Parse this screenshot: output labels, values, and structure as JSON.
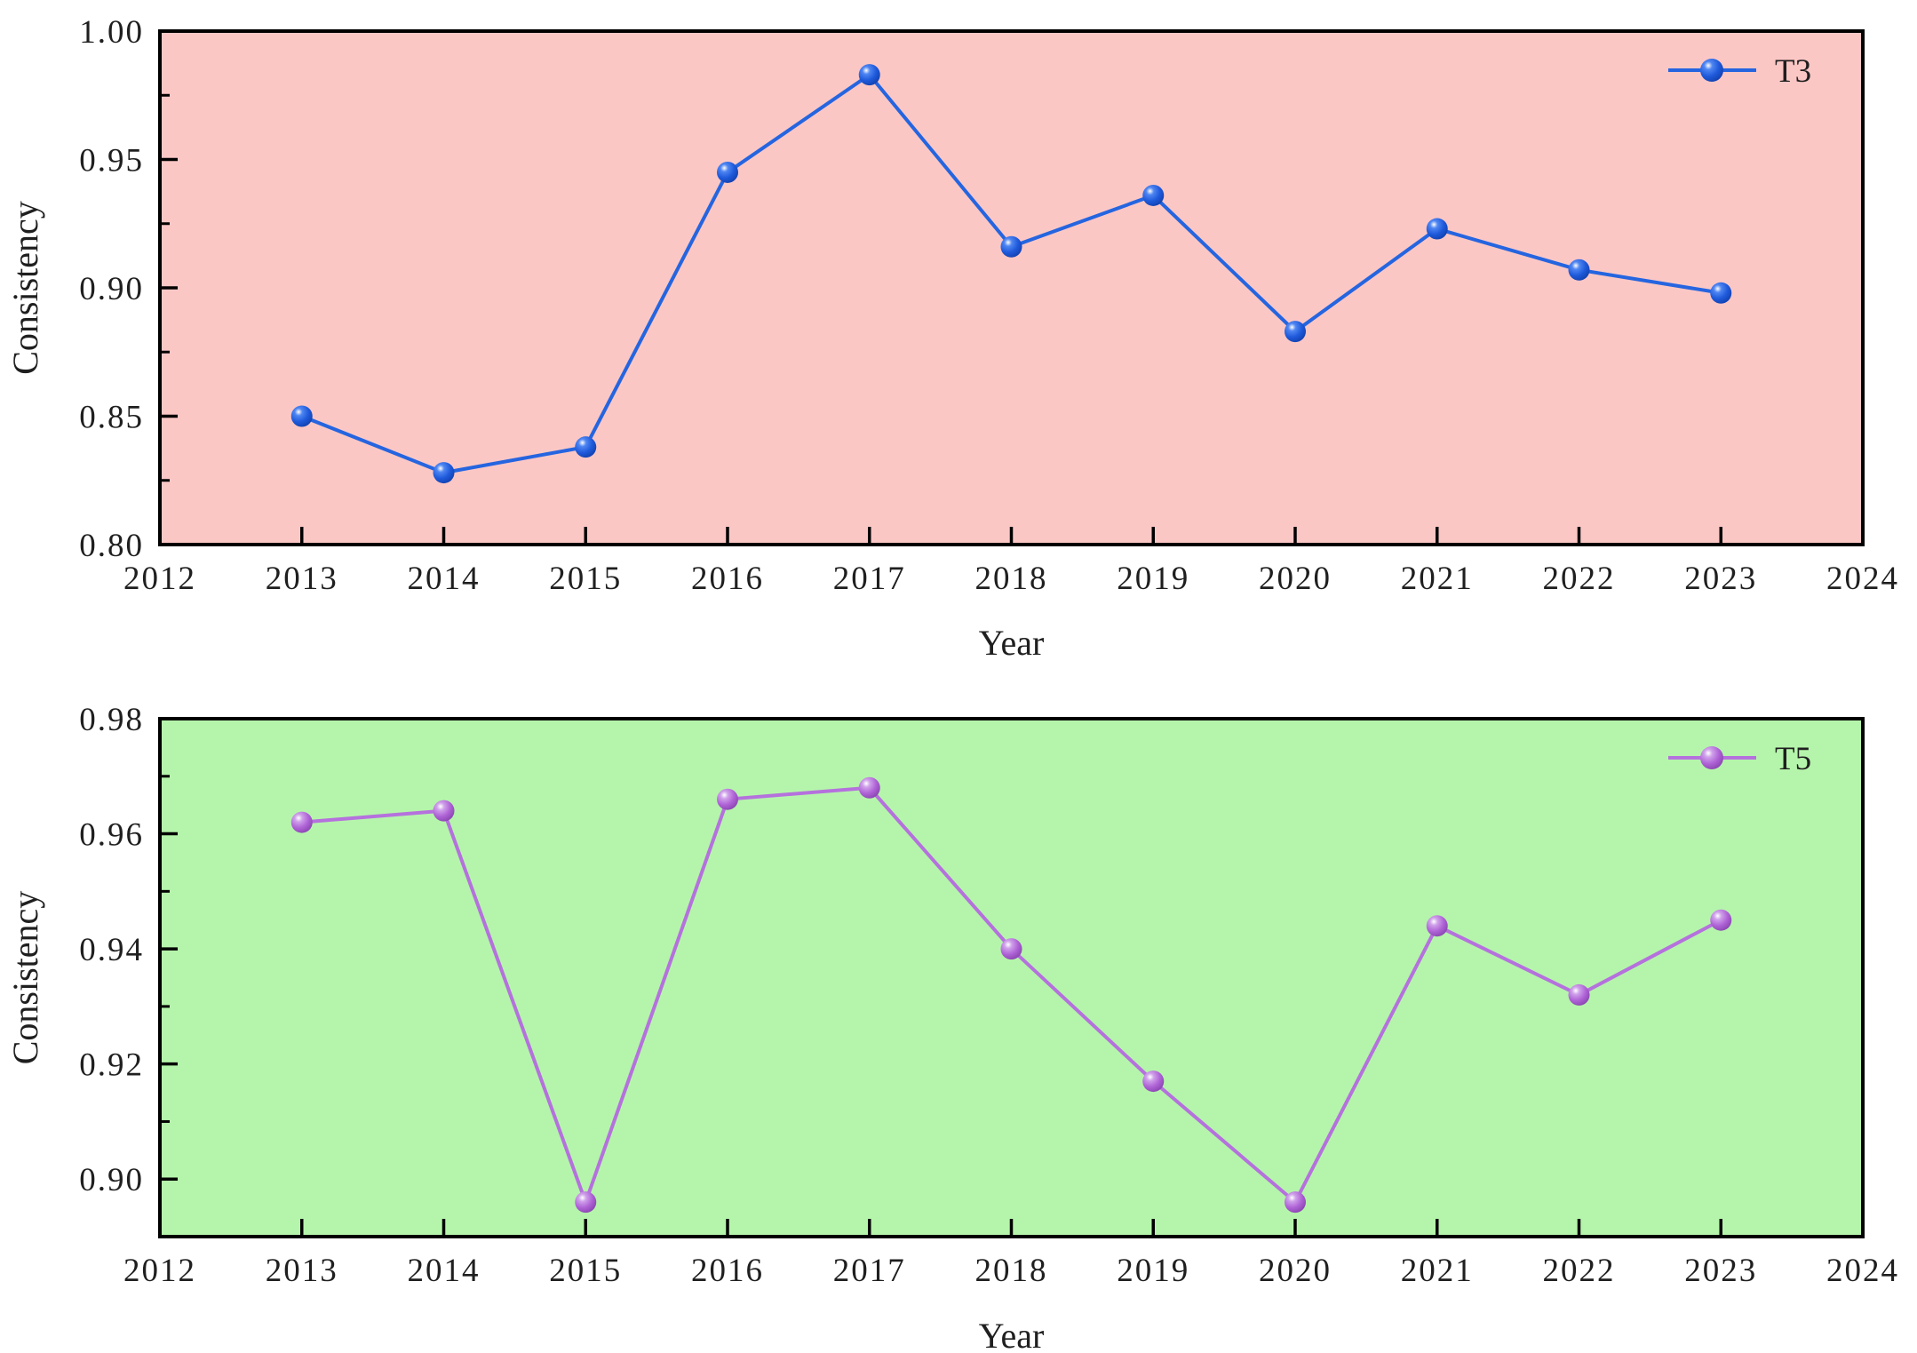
{
  "figure": {
    "background": "#ffffff",
    "text_color": "#1f1f1f",
    "axis_color": "#000000"
  },
  "chart_data": [
    {
      "id": "t3",
      "type": "line",
      "title": "",
      "xlabel": "Year",
      "ylabel": "Consistency",
      "legend": {
        "label": "T3",
        "position": "upper-right",
        "frame": false
      },
      "x": [
        2013,
        2014,
        2015,
        2016,
        2017,
        2018,
        2019,
        2020,
        2021,
        2022,
        2023
      ],
      "values": [
        0.85,
        0.828,
        0.838,
        0.945,
        0.983,
        0.916,
        0.936,
        0.883,
        0.923,
        0.907,
        0.898
      ],
      "xlim": [
        2012,
        2024
      ],
      "ylim": [
        0.8,
        1.0
      ],
      "xtick_values": [
        2012,
        2013,
        2014,
        2015,
        2016,
        2017,
        2018,
        2019,
        2020,
        2021,
        2022,
        2023,
        2024
      ],
      "xtick_labels": [
        "2012",
        "2013",
        "2014",
        "2015",
        "2016",
        "2017",
        "2018",
        "2019",
        "2020",
        "2021",
        "2022",
        "2023",
        "2024"
      ],
      "ytick_values": [
        0.8,
        0.85,
        0.9,
        0.95,
        1.0
      ],
      "ytick_labels": [
        "0.80",
        "0.85",
        "0.90",
        "0.95",
        "1.00"
      ],
      "ytick_minor": [
        0.825,
        0.875,
        0.925,
        0.975
      ],
      "grid": false,
      "plot_background": "#fbc7c5",
      "line_color": "#2565e0",
      "marker": {
        "shape": "sphere",
        "highlight": "#ffffff",
        "light": "#4f86f2",
        "main": "#1f5adb",
        "rim": "#0f3da8"
      }
    },
    {
      "id": "t5",
      "type": "line",
      "title": "",
      "xlabel": "Year",
      "ylabel": "Consistency",
      "legend": {
        "label": "T5",
        "position": "upper-right",
        "frame": false
      },
      "x": [
        2013,
        2014,
        2015,
        2016,
        2017,
        2018,
        2019,
        2020,
        2021,
        2022,
        2023
      ],
      "values": [
        0.962,
        0.964,
        0.896,
        0.966,
        0.968,
        0.94,
        0.917,
        0.896,
        0.944,
        0.932,
        0.945
      ],
      "xlim": [
        2012,
        2024
      ],
      "ylim": [
        0.89,
        0.98
      ],
      "xtick_values": [
        2012,
        2013,
        2014,
        2015,
        2016,
        2017,
        2018,
        2019,
        2020,
        2021,
        2022,
        2023,
        2024
      ],
      "xtick_labels": [
        "2012",
        "2013",
        "2014",
        "2015",
        "2016",
        "2017",
        "2018",
        "2019",
        "2020",
        "2021",
        "2022",
        "2023",
        "2024"
      ],
      "ytick_values": [
        0.9,
        0.92,
        0.94,
        0.96,
        0.98
      ],
      "ytick_labels": [
        "0.90",
        "0.92",
        "0.94",
        "0.96",
        "0.98"
      ],
      "ytick_minor": [
        0.91,
        0.93,
        0.95,
        0.97
      ],
      "grid": false,
      "plot_background": "#b5f5ab",
      "line_color": "#b571dd",
      "marker": {
        "shape": "sphere",
        "highlight": "#ffffff",
        "light": "#cfa0ea",
        "main": "#af63d6",
        "rim": "#8440ab"
      }
    }
  ]
}
